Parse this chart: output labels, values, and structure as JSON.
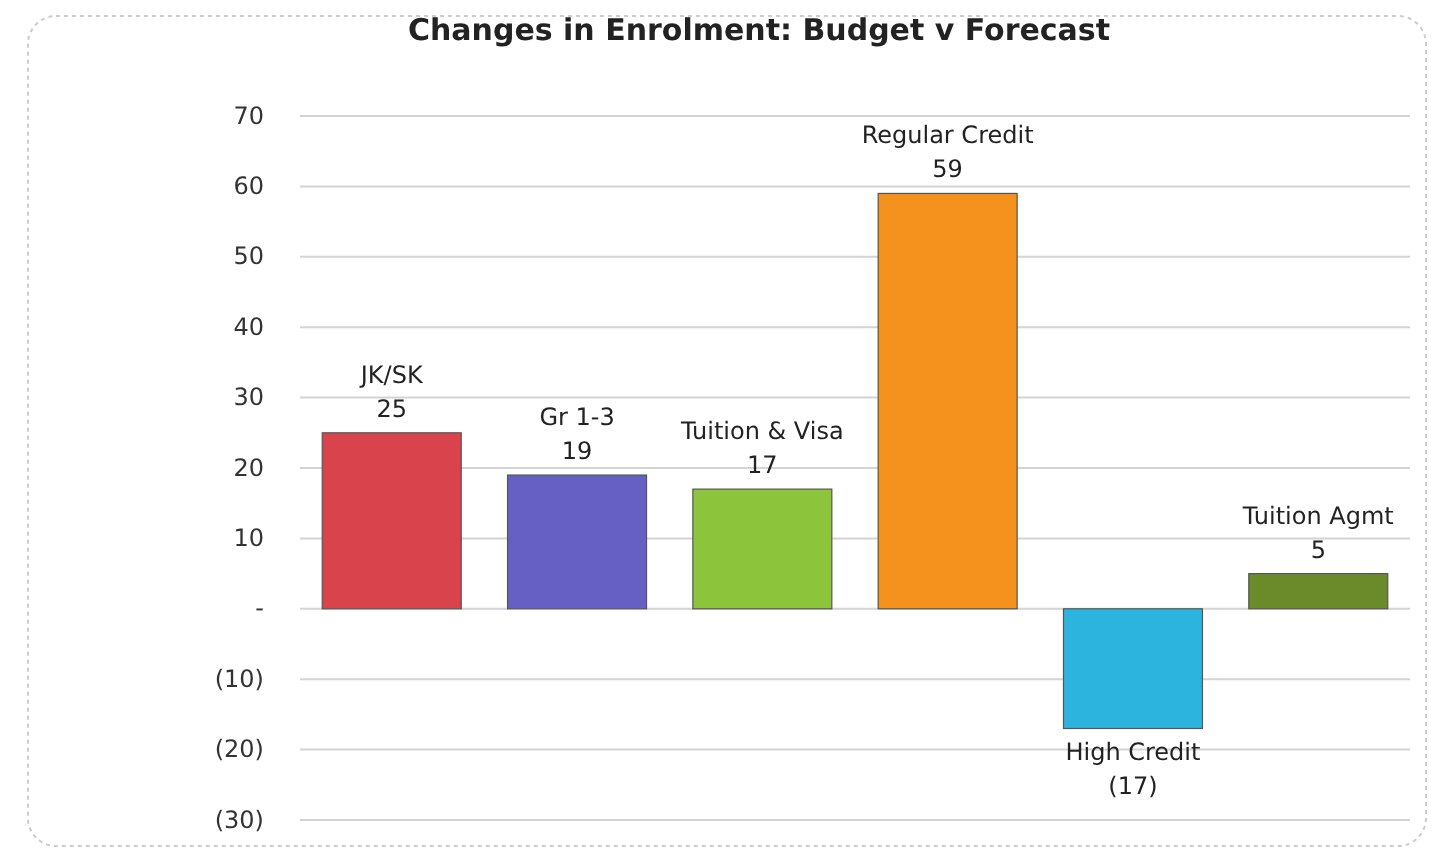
{
  "chart_data": {
    "type": "bar",
    "title": "Changes in Enrolment: Budget v Forecast",
    "categories": [
      "JK/SK",
      "Gr 1-3",
      "Tuition & Visa",
      "Regular Credit",
      "High Credit",
      "Tuition Agmt"
    ],
    "values": [
      25,
      19,
      17,
      59,
      -17,
      5
    ],
    "colors": [
      "#d9434b",
      "#6660c4",
      "#8cc43c",
      "#f5921e",
      "#2db4de",
      "#6b8a2a"
    ],
    "value_labels": [
      "25",
      "19",
      "17",
      "59",
      "(17)",
      "5"
    ],
    "ylim": [
      -30,
      70
    ],
    "yticks": [
      {
        "value": -30,
        "label": "(30)"
      },
      {
        "value": -20,
        "label": "(20)"
      },
      {
        "value": -10,
        "label": "(10)"
      },
      {
        "value": 0,
        "label": "-"
      },
      10,
      20,
      30,
      40,
      50,
      60,
      70
    ],
    "grid": "y",
    "tick_labels": "y"
  }
}
